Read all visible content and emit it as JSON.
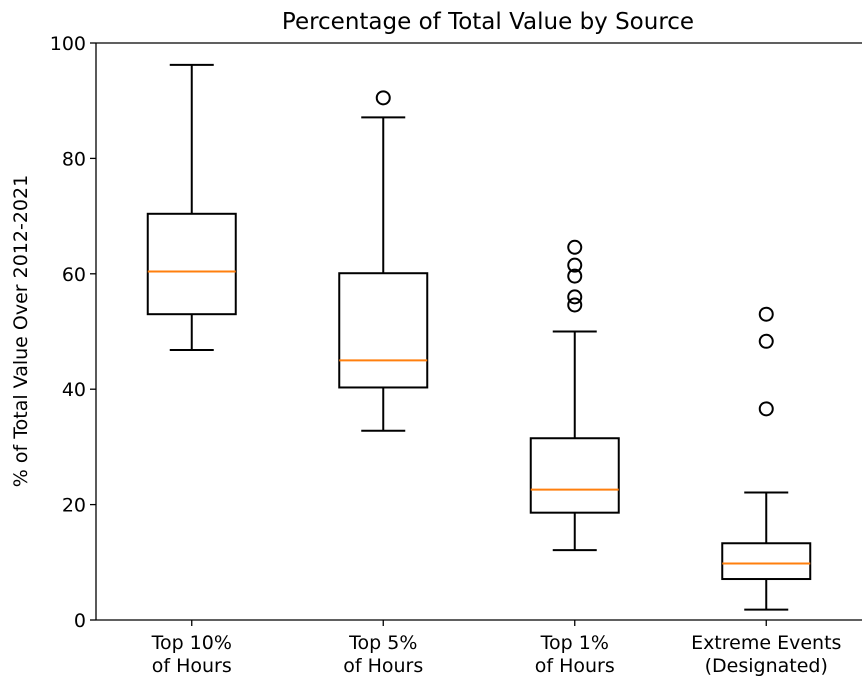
{
  "chart_data": {
    "type": "box",
    "title": "Percentage of Total Value by Source",
    "xlabel": "",
    "ylabel": "% of Total Value Over 2012-2021",
    "ylim": [
      0,
      100
    ],
    "yticks": [
      0,
      20,
      40,
      60,
      80,
      100
    ],
    "grid": false,
    "median_color": "#ff7f0e",
    "categories": [
      [
        "Top 10%",
        "of Hours"
      ],
      [
        "Top 5%",
        "of Hours"
      ],
      [
        "Top 1%",
        "of Hours"
      ],
      [
        "Extreme Events",
        "(Designated)"
      ]
    ],
    "boxes": [
      {
        "whisker_low": 46.8,
        "q1": 53.0,
        "median": 60.4,
        "q3": 70.4,
        "whisker_high": 96.2,
        "fliers": []
      },
      {
        "whisker_low": 32.8,
        "q1": 40.3,
        "median": 45.0,
        "q3": 60.1,
        "whisker_high": 87.1,
        "fliers": [
          90.5
        ]
      },
      {
        "whisker_low": 12.1,
        "q1": 18.6,
        "median": 22.6,
        "q3": 31.5,
        "whisker_high": 50.0,
        "fliers": [
          54.6,
          56.0,
          59.6,
          61.5,
          64.6
        ]
      },
      {
        "whisker_low": 1.8,
        "q1": 7.1,
        "median": 9.8,
        "q3": 13.3,
        "whisker_high": 22.1,
        "fliers": [
          36.6,
          48.3,
          53.0
        ]
      }
    ]
  }
}
